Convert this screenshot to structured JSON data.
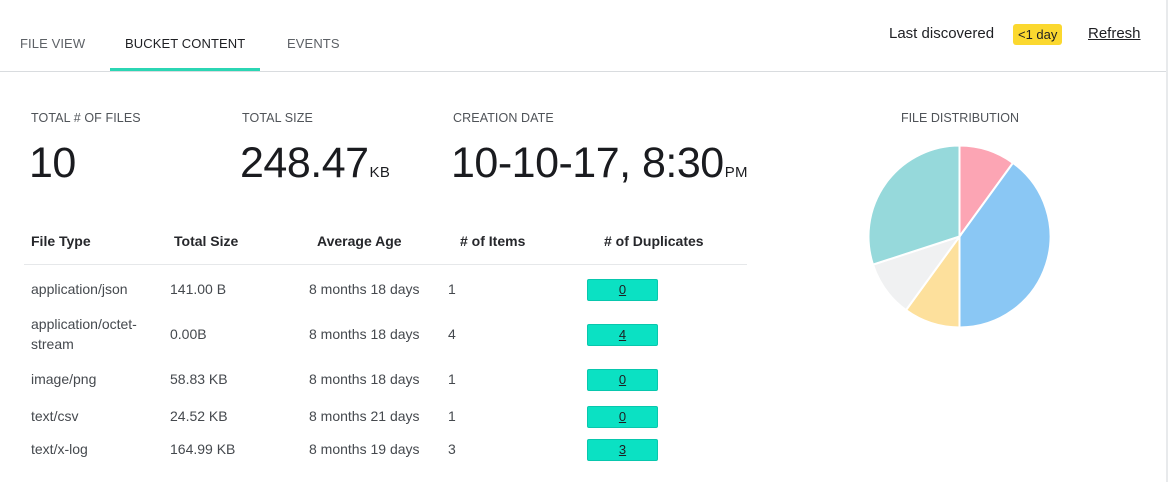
{
  "tabs": [
    {
      "label": "FILE VIEW"
    },
    {
      "label": "BUCKET CONTENT"
    },
    {
      "label": "EVENTS"
    }
  ],
  "discovery": {
    "label": "Last discovered",
    "badge": "<1 day",
    "refresh": "Refresh"
  },
  "stats": {
    "total_files": {
      "label": "TOTAL # OF FILES",
      "value": "10"
    },
    "total_size": {
      "label": "TOTAL SIZE",
      "value": "248.47",
      "unit": "KB"
    },
    "creation_date": {
      "label": "CREATION DATE",
      "value": "10-10-17, 8:30",
      "unit": "PM"
    }
  },
  "table": {
    "headers": [
      "File Type",
      "Total Size",
      "Average Age",
      "# of Items",
      "# of Duplicates"
    ],
    "rows": [
      {
        "type": "application/json",
        "size": "141.00 B",
        "age": "8 months 18 days",
        "items": "1",
        "duplicates": "0"
      },
      {
        "type": "application/octet-stream",
        "size": "0.00B",
        "age": "8 months 18 days",
        "items": "4",
        "duplicates": "4"
      },
      {
        "type": "image/png",
        "size": "58.83 KB",
        "age": "8 months 18 days",
        "items": "1",
        "duplicates": "0"
      },
      {
        "type": "text/csv",
        "size": "24.52 KB",
        "age": "8 months 21 days",
        "items": "1",
        "duplicates": "0"
      },
      {
        "type": "text/x-log",
        "size": "164.99 KB",
        "age": "8 months 19 days",
        "items": "3",
        "duplicates": "3"
      }
    ]
  },
  "chart_data": {
    "type": "pie",
    "title": "FILE DISTRIBUTION",
    "slices": [
      {
        "value": 1,
        "color": "#fca5b4"
      },
      {
        "value": 4,
        "color": "#8ac7f4"
      },
      {
        "value": 1,
        "color": "#fde09c"
      },
      {
        "value": 1,
        "color": "#f0f1f2"
      },
      {
        "value": 3,
        "color": "#96d9db"
      }
    ],
    "stroke_color": "#ffffff"
  },
  "colors": {
    "accent": "#2bd6b4",
    "badge": "#fbd82f",
    "duplicate_button": "#0be1c3"
  }
}
